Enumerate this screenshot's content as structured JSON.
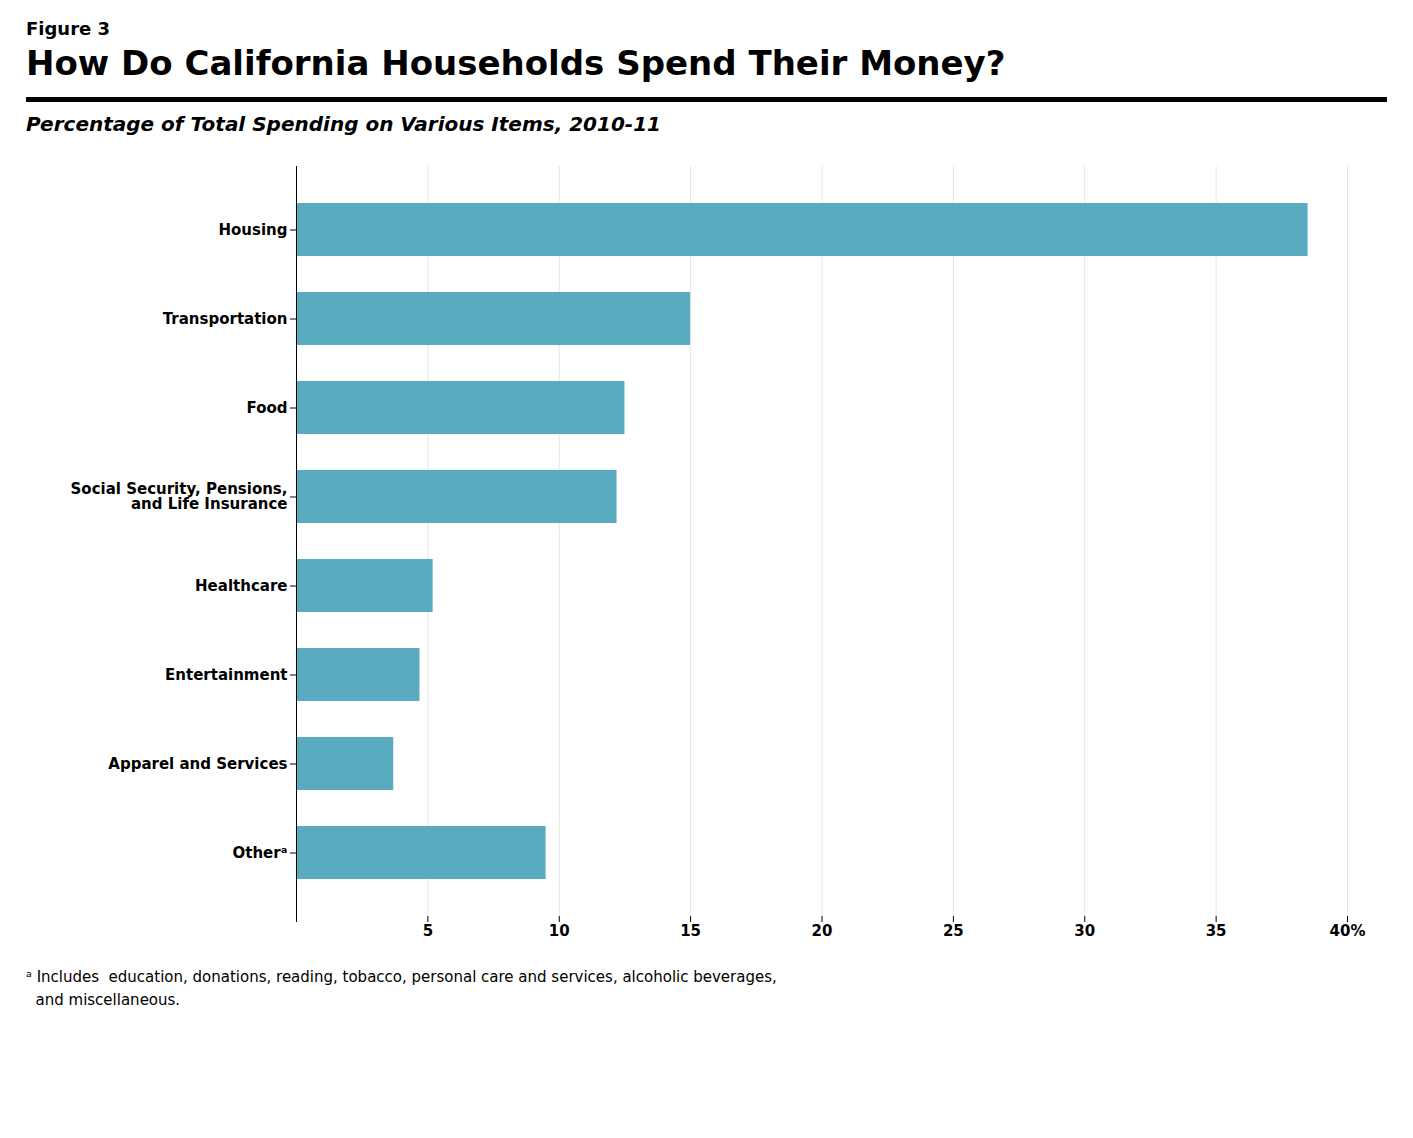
{
  "chart_data": {
    "type": "bar",
    "orientation": "horizontal",
    "figure_label": "Figure 3",
    "title": "How Do California Households Spend Their Money?",
    "subtitle": "Percentage of Total Spending on Various Items, 2010-11",
    "categories": [
      "Housing",
      "Transportation",
      "Food",
      "Social Security, Pensions,\nand Life Insurance",
      "Healthcare",
      "Entertainment",
      "Apparel and Services",
      "Otherᵃ"
    ],
    "values": [
      38.5,
      15.0,
      12.5,
      12.2,
      5.2,
      4.7,
      3.7,
      9.5
    ],
    "color": "#5aabbf",
    "xlim": [
      0,
      40
    ],
    "xticks": [
      {
        "value": 0,
        "label": ""
      },
      5,
      10,
      15,
      20,
      25,
      30,
      35,
      {
        "value": 40,
        "label": "40%"
      }
    ],
    "grid": true,
    "footnote": [
      "ᵃ Includes  education, donations, reading, tobacco, personal care and services, alcoholic beverages,",
      "  and miscellaneous."
    ]
  }
}
